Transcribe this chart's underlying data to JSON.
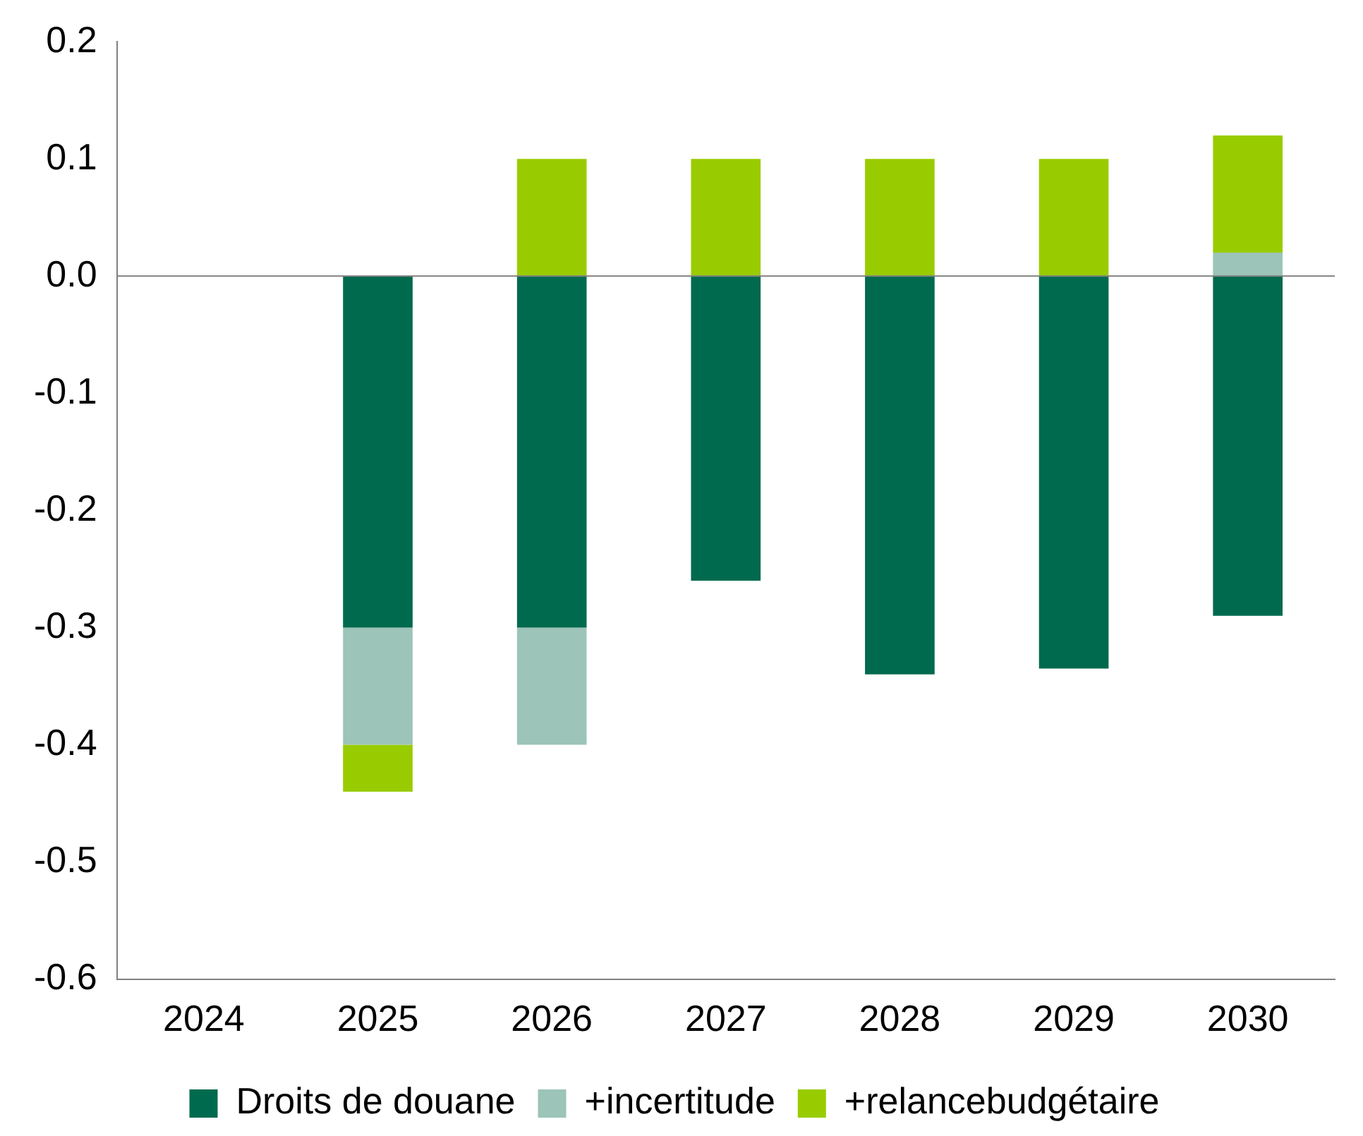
{
  "chart_data": {
    "type": "bar",
    "stacked": true,
    "categories": [
      "2024",
      "2025",
      "2026",
      "2027",
      "2028",
      "2029",
      "2030"
    ],
    "series": [
      {
        "name": "Droits de douane",
        "color": "#006a4e",
        "values": [
          null,
          -0.3,
          -0.3,
          -0.26,
          -0.34,
          -0.335,
          -0.29
        ]
      },
      {
        "name": "+incertitude",
        "color": "#9cc4b8",
        "values": [
          null,
          -0.1,
          -0.1,
          null,
          null,
          null,
          0.02
        ]
      },
      {
        "name": "+relancebudgétaire",
        "color": "#99cc00",
        "values": [
          null,
          -0.04,
          0.1,
          0.1,
          0.1,
          0.1,
          0.1
        ]
      }
    ],
    "ylim": [
      -0.6,
      0.2
    ],
    "yticks": [
      0.2,
      0.1,
      {
        "value": 0,
        "label": "0.0"
      },
      -0.1,
      -0.2,
      -0.3,
      -0.4,
      -0.5,
      -0.6
    ],
    "ref_lines": [
      {
        "axis": "y",
        "value": 0,
        "color": "#808080"
      }
    ],
    "grid": false,
    "legend": "bottom"
  }
}
